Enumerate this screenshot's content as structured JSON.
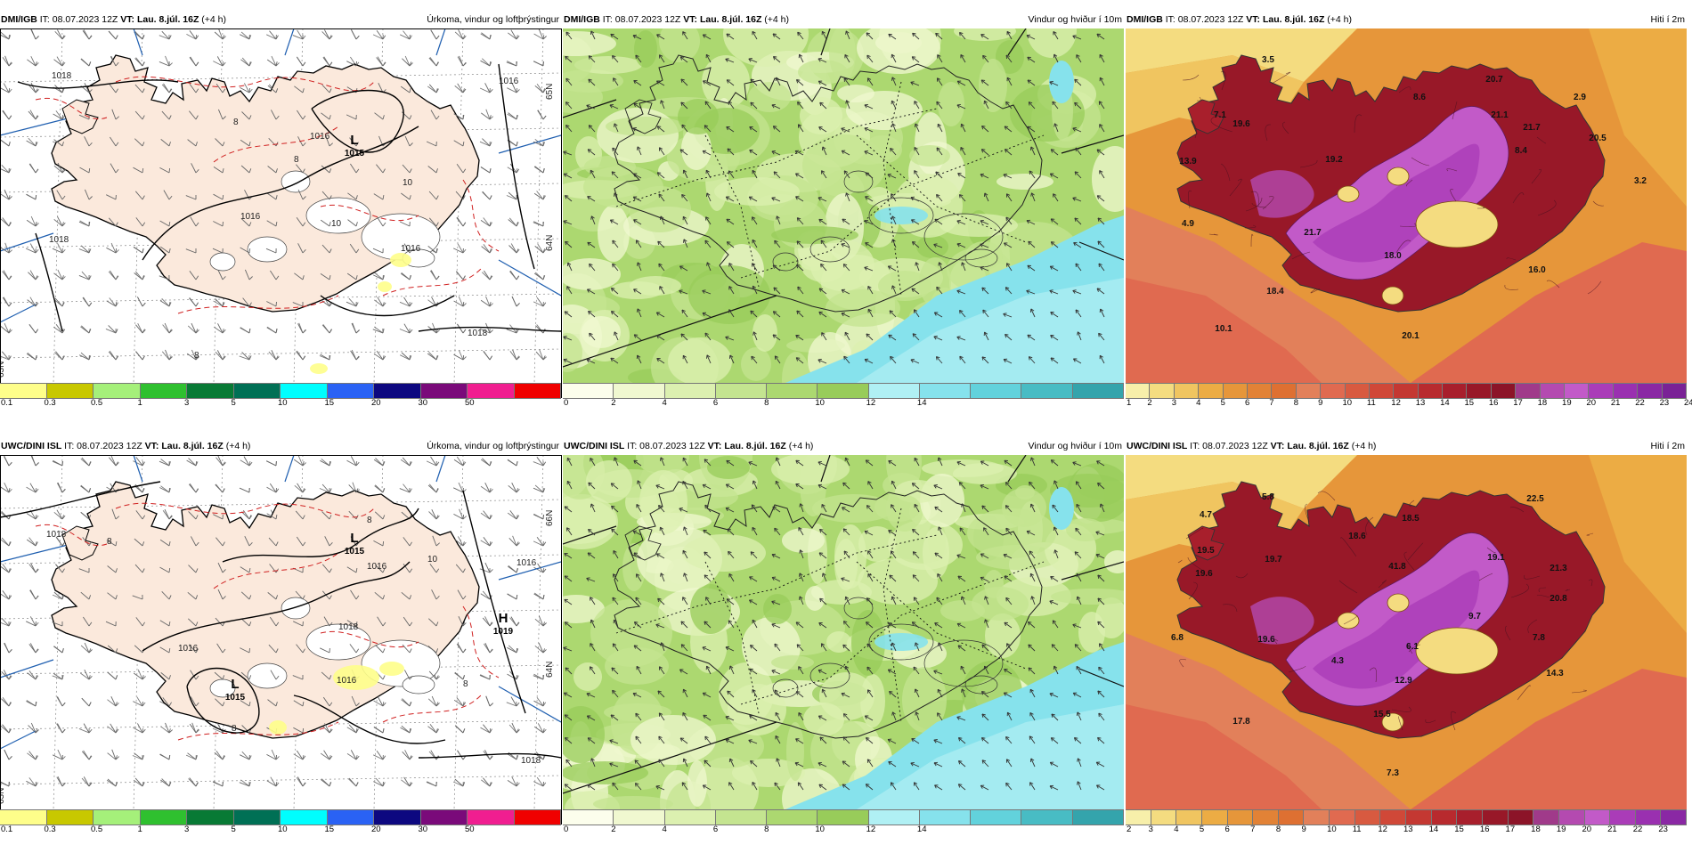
{
  "rows": [
    {
      "model": "DMI/IGB",
      "panels": [
        {
          "it": "IT: 08.07.2023 12Z",
          "vt_label": "VT:",
          "vt": "Lau. 8.júl. 16Z",
          "lead": "(+4 h)",
          "title": "Úrkoma, vindur og loftþrýstingur",
          "kind": "precip",
          "scale": [
            "0.1",
            "0.3",
            "0.5",
            "1",
            "3",
            "5",
            "10",
            "15",
            "20",
            "30",
            "50"
          ],
          "isobars": [
            "1018",
            "1016",
            "1016",
            "1016",
            "1018",
            "1016",
            "1018"
          ],
          "rain_labels": [
            "8",
            "10",
            "10",
            "8",
            "8"
          ],
          "lat_labels": [
            "65N",
            "64N",
            "63N"
          ],
          "centers": [
            {
              "letter": "L",
              "value": "1015"
            }
          ]
        },
        {
          "it": "IT: 08.07.2023 12Z",
          "vt_label": "VT:",
          "vt": "Lau. 8.júl. 16Z",
          "lead": "(+4 h)",
          "title": "Vindur og hviður í 10m",
          "kind": "wind",
          "scale": [
            "0",
            "2",
            "4",
            "6",
            "8",
            "10",
            "12",
            "14"
          ]
        },
        {
          "it": "IT: 08.07.2023 12Z",
          "vt_label": "VT:",
          "vt": "Lau. 8.júl. 16Z",
          "lead": "(+4 h)",
          "title": "Hiti í 2m",
          "kind": "temp",
          "scale": [
            "1",
            "2",
            "3",
            "4",
            "5",
            "6",
            "7",
            "8",
            "9",
            "10",
            "11",
            "12",
            "13",
            "14",
            "15",
            "16",
            "17",
            "18",
            "19",
            "20",
            "21",
            "22",
            "23",
            "24"
          ],
          "temps": [
            "3.5",
            "7.1",
            "19.6",
            "13.9",
            "19.2",
            "8.6",
            "21.1",
            "4.9",
            "21.7",
            "18.0",
            "18.4",
            "20.7",
            "21.7",
            "2.9",
            "8.4",
            "3.2",
            "20.5",
            "16.0",
            "10.1",
            "20.1"
          ]
        }
      ]
    },
    {
      "model": "UWC/DINI ISL",
      "panels": [
        {
          "it": "IT: 08.07.2023 12Z",
          "vt_label": "VT:",
          "vt": "Lau. 8.júl. 16Z",
          "lead": "(+4 h)",
          "title": "Úrkoma, vindur og loftþrýstingur",
          "kind": "precip",
          "scale": [
            "0.1",
            "0.3",
            "0.5",
            "1",
            "3",
            "5",
            "10",
            "15",
            "20",
            "30",
            "50"
          ],
          "isobars": [
            "1018",
            "1016",
            "1016",
            "1016",
            "1018",
            "1016",
            "1018"
          ],
          "rain_labels": [
            "8",
            "8",
            "10",
            "8",
            "8"
          ],
          "lat_labels": [
            "66N",
            "64N",
            "63N"
          ],
          "centers": [
            {
              "letter": "L",
              "value": "1015"
            },
            {
              "letter": "L",
              "value": "1015"
            },
            {
              "letter": "H",
              "value": "1019"
            }
          ]
        },
        {
          "it": "IT: 08.07.2023 12Z",
          "vt_label": "VT:",
          "vt": "Lau. 8.júl. 16Z",
          "lead": "(+4 h)",
          "title": "Vindur og hviður í 10m",
          "kind": "wind",
          "scale": [
            "0",
            "2",
            "4",
            "6",
            "8",
            "10",
            "12",
            "14"
          ]
        },
        {
          "it": "IT: 08.07.2023 12Z",
          "vt_label": "VT:",
          "vt": "Lau. 8.júl. 16Z",
          "lead": "(+4 h)",
          "title": "Hiti í 2m",
          "kind": "temp",
          "scale": [
            "2",
            "3",
            "4",
            "5",
            "6",
            "7",
            "8",
            "9",
            "10",
            "11",
            "12",
            "13",
            "14",
            "15",
            "16",
            "17",
            "18",
            "19",
            "20",
            "21",
            "22",
            "23"
          ],
          "temps": [
            "4.7",
            "5.8",
            "19.5",
            "19.6",
            "18.6",
            "18.5",
            "22.5",
            "19.7",
            "41.8",
            "19.1",
            "21.3",
            "6.8",
            "19.6",
            "4.3",
            "6.1",
            "9.7",
            "20.8",
            "7.8",
            "14.3",
            "12.9",
            "17.8",
            "15.5",
            "7.3"
          ]
        }
      ]
    }
  ],
  "colors": {
    "precip_scale": [
      "#fefe8a",
      "#c8c800",
      "#a5f07a",
      "#2fc02f",
      "#087a35",
      "#007055",
      "#00fefe",
      "#2a62f4",
      "#0d0880",
      "#7a0a7a",
      "#f01e90",
      "#f00000"
    ],
    "wind_scale": [
      "#fcfeec",
      "#f0f8d0",
      "#dcf0b0",
      "#c4e490",
      "#acd870",
      "#98cc5a",
      "#b0f0f4",
      "#86e2ec",
      "#62d2dc",
      "#48bcc4",
      "#34a4ac"
    ],
    "temp_scale": [
      "#f7efaa",
      "#f4dc80",
      "#f0c560",
      "#ecac44",
      "#e6963a",
      "#e28236",
      "#de7032",
      "#e2805a",
      "#e06a50",
      "#d85a40",
      "#d04838",
      "#c43832",
      "#b82a2e",
      "#a81f2c",
      "#981828",
      "#8c1428",
      "#a03a8a",
      "#b44ab0",
      "#c25ac8",
      "#aa3cb8",
      "#9a30b0",
      "#8a28a4",
      "#7a2296"
    ],
    "land_precip": "#fbe9dc",
    "sea_precip": "#ffffff",
    "isobar": "#000000",
    "rain_contour": "#d02020",
    "grid_blue": "#1f5fb0"
  }
}
